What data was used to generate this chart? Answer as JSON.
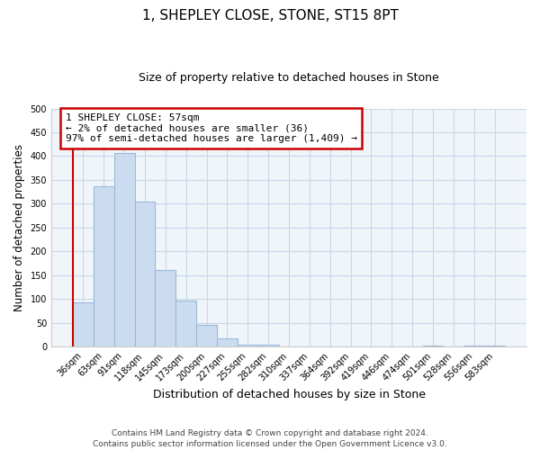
{
  "title": "1, SHEPLEY CLOSE, STONE, ST15 8PT",
  "subtitle": "Size of property relative to detached houses in Stone",
  "xlabel": "Distribution of detached houses by size in Stone",
  "ylabel": "Number of detached properties",
  "categories": [
    "36sqm",
    "63sqm",
    "91sqm",
    "118sqm",
    "145sqm",
    "173sqm",
    "200sqm",
    "227sqm",
    "255sqm",
    "282sqm",
    "310sqm",
    "337sqm",
    "364sqm",
    "392sqm",
    "419sqm",
    "446sqm",
    "474sqm",
    "501sqm",
    "528sqm",
    "556sqm",
    "583sqm"
  ],
  "values": [
    93,
    336,
    407,
    304,
    161,
    96,
    45,
    18,
    4,
    4,
    0,
    0,
    0,
    0,
    0,
    0,
    0,
    2,
    0,
    2,
    2
  ],
  "bar_color": "#ccdcf0",
  "bar_edge_color": "#9ab8d8",
  "highlight_line_color": "#cc0000",
  "annotation_text": "1 SHEPLEY CLOSE: 57sqm\n← 2% of detached houses are smaller (36)\n97% of semi-detached houses are larger (1,409) →",
  "annotation_box_color": "#ffffff",
  "annotation_box_edge": "#cc0000",
  "ylim": [
    0,
    500
  ],
  "yticks": [
    0,
    50,
    100,
    150,
    200,
    250,
    300,
    350,
    400,
    450,
    500
  ],
  "footer": "Contains HM Land Registry data © Crown copyright and database right 2024.\nContains public sector information licensed under the Open Government Licence v3.0.",
  "grid_color": "#c8d8e8",
  "fig_bg": "#ffffff",
  "ax_bg": "#f0f5fa"
}
